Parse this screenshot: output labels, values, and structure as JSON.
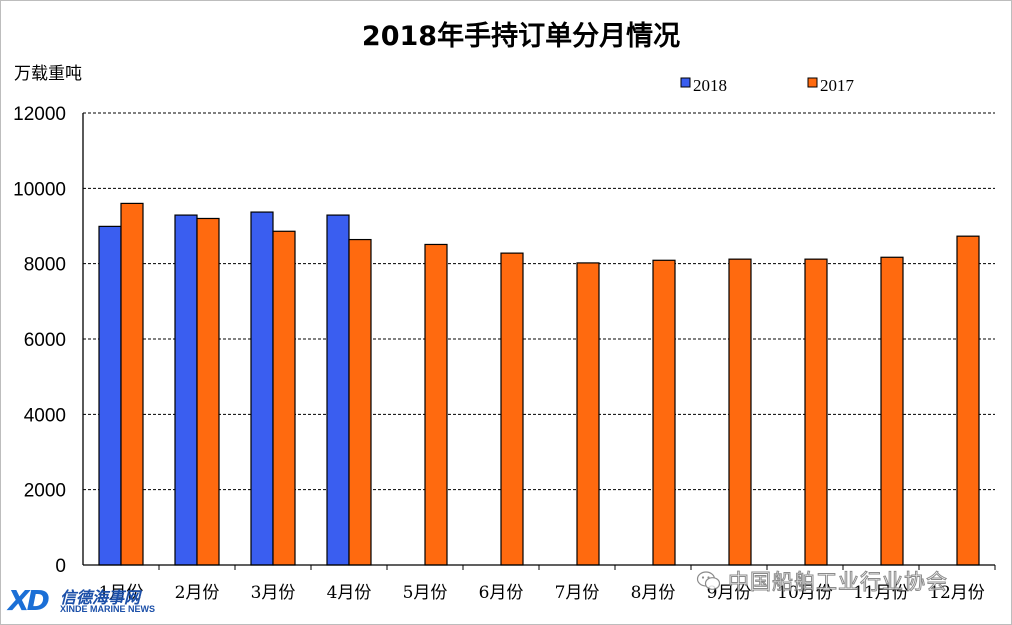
{
  "chart_data": {
    "type": "bar",
    "title": "2018年手持订单分月情况",
    "ylabel": "万载重吨",
    "ylim": [
      0,
      12000
    ],
    "yticks": [
      0,
      2000,
      4000,
      6000,
      8000,
      10000,
      12000
    ],
    "grid": true,
    "legend_position": "top-right",
    "categories": [
      "1月份",
      "2月份",
      "3月份",
      "4月份",
      "5月份",
      "6月份",
      "7月份",
      "8月份",
      "9月份",
      "10月份",
      "11月份",
      "12月份"
    ],
    "series": [
      {
        "name": "2018",
        "color": "#3a5ef0",
        "values": [
          8990,
          9290,
          9370,
          9290,
          null,
          null,
          null,
          null,
          null,
          null,
          null,
          null
        ]
      },
      {
        "name": "2017",
        "color": "#ff6a0f",
        "values": [
          9600,
          9200,
          8860,
          8640,
          8510,
          8280,
          8020,
          8090,
          8120,
          8120,
          8170,
          8730
        ]
      }
    ]
  },
  "watermark": {
    "icon": "wechat-icon",
    "text": "中国船舶工业行业协会"
  },
  "logo": {
    "mark": "XD",
    "name_cn": "信德海事网",
    "name_en": "XINDE MARINE NEWS"
  }
}
